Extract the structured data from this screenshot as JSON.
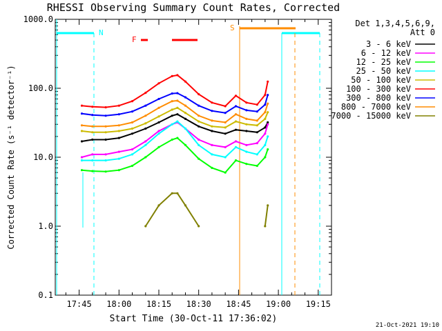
{
  "chart_data": {
    "type": "line",
    "title": "RHESSI Observing Summary Count Rates, Corrected",
    "xlabel": "Start Time (30-Oct-11 17:36:02)",
    "ylabel": "Corrected Count Rate (s⁻¹ detector⁻¹)",
    "yscale": "log",
    "ylim": [
      0.1,
      1000
    ],
    "xlim_minutes_after_17_36": [
      0,
      104
    ],
    "x_tick_labels": [
      "17:45",
      "18:00",
      "18:15",
      "18:30",
      "18:45",
      "19:00",
      "19:15"
    ],
    "x_tick_minutes": [
      9,
      24,
      39,
      54,
      69,
      84,
      99
    ],
    "y_tick_labels": [
      "0.1",
      "1.0",
      "10.0",
      "100.0",
      "1000.0"
    ],
    "y_tick_values": [
      0.1,
      1,
      10,
      100,
      1000
    ],
    "legend_position": "top-right",
    "legend_header": [
      "Det 1,3,4,5,6,9,",
      "Att 0"
    ],
    "x": [
      "17:46",
      "17:50",
      "17:55",
      "18:00",
      "18:05",
      "18:10",
      "18:15",
      "18:20",
      "18:22",
      "18:25",
      "18:30",
      "18:35",
      "18:40",
      "18:44",
      "18:48",
      "18:52",
      "18:55",
      "18:56"
    ],
    "series": [
      {
        "name": "3 - 6 keV",
        "color": "#000000",
        "values": [
          17,
          18,
          18,
          19,
          22,
          26,
          32,
          40,
          42,
          36,
          28,
          24,
          22,
          25,
          24,
          23,
          27,
          32
        ]
      },
      {
        "name": "6 - 12 keV",
        "color": "#ff00ff",
        "values": [
          10,
          11,
          11,
          12,
          13,
          17,
          24,
          30,
          32,
          26,
          18,
          15,
          14,
          17,
          15,
          16,
          22,
          30
        ]
      },
      {
        "name": "12 - 25 keV",
        "color": "#00ff00",
        "values": [
          6.5,
          6.3,
          6.2,
          6.5,
          7.5,
          10,
          14,
          18,
          19,
          15,
          9.5,
          7,
          6,
          9,
          8,
          7.5,
          10,
          13
        ]
      },
      {
        "name": "25 - 50 keV",
        "color": "#00ffff",
        "values": [
          9,
          9,
          9,
          9.5,
          11,
          15,
          22,
          30,
          33,
          26,
          15,
          11,
          10,
          14,
          12,
          11,
          15,
          20
        ]
      },
      {
        "name": "50 - 100 keV",
        "color": "#ccbb00",
        "values": [
          24,
          23,
          23,
          24,
          26,
          31,
          39,
          49,
          52,
          44,
          33,
          28,
          27,
          33,
          30,
          29,
          36,
          45
        ]
      },
      {
        "name": "100 - 300 keV",
        "color": "#ff0000",
        "values": [
          56,
          54,
          53,
          56,
          65,
          86,
          118,
          150,
          155,
          125,
          82,
          62,
          55,
          78,
          62,
          58,
          80,
          125
        ]
      },
      {
        "name": "300 - 800 keV",
        "color": "#0000ff",
        "values": [
          43,
          41,
          40,
          42,
          46,
          56,
          70,
          84,
          85,
          74,
          56,
          47,
          44,
          55,
          48,
          46,
          58,
          80
        ]
      },
      {
        "name": "800 - 7000 keV",
        "color": "#ff8c00",
        "values": [
          29,
          28,
          28,
          29,
          32,
          40,
          52,
          65,
          66,
          56,
          40,
          34,
          32,
          42,
          36,
          34,
          45,
          60
        ]
      },
      {
        "name": "7000 - 15000 keV",
        "color": "#808000",
        "values": [
          null,
          null,
          null,
          null,
          null,
          1,
          2,
          3,
          3,
          2,
          1,
          null,
          null,
          null,
          null,
          null,
          1,
          2
        ]
      }
    ],
    "flags": [
      {
        "label": "N",
        "color": "#00ffff"
      },
      {
        "label": "F",
        "color": "#ff0000"
      },
      {
        "label": "S",
        "color": "#ff8c00"
      }
    ],
    "footer_date": "21-Oct-2021 19:10"
  }
}
